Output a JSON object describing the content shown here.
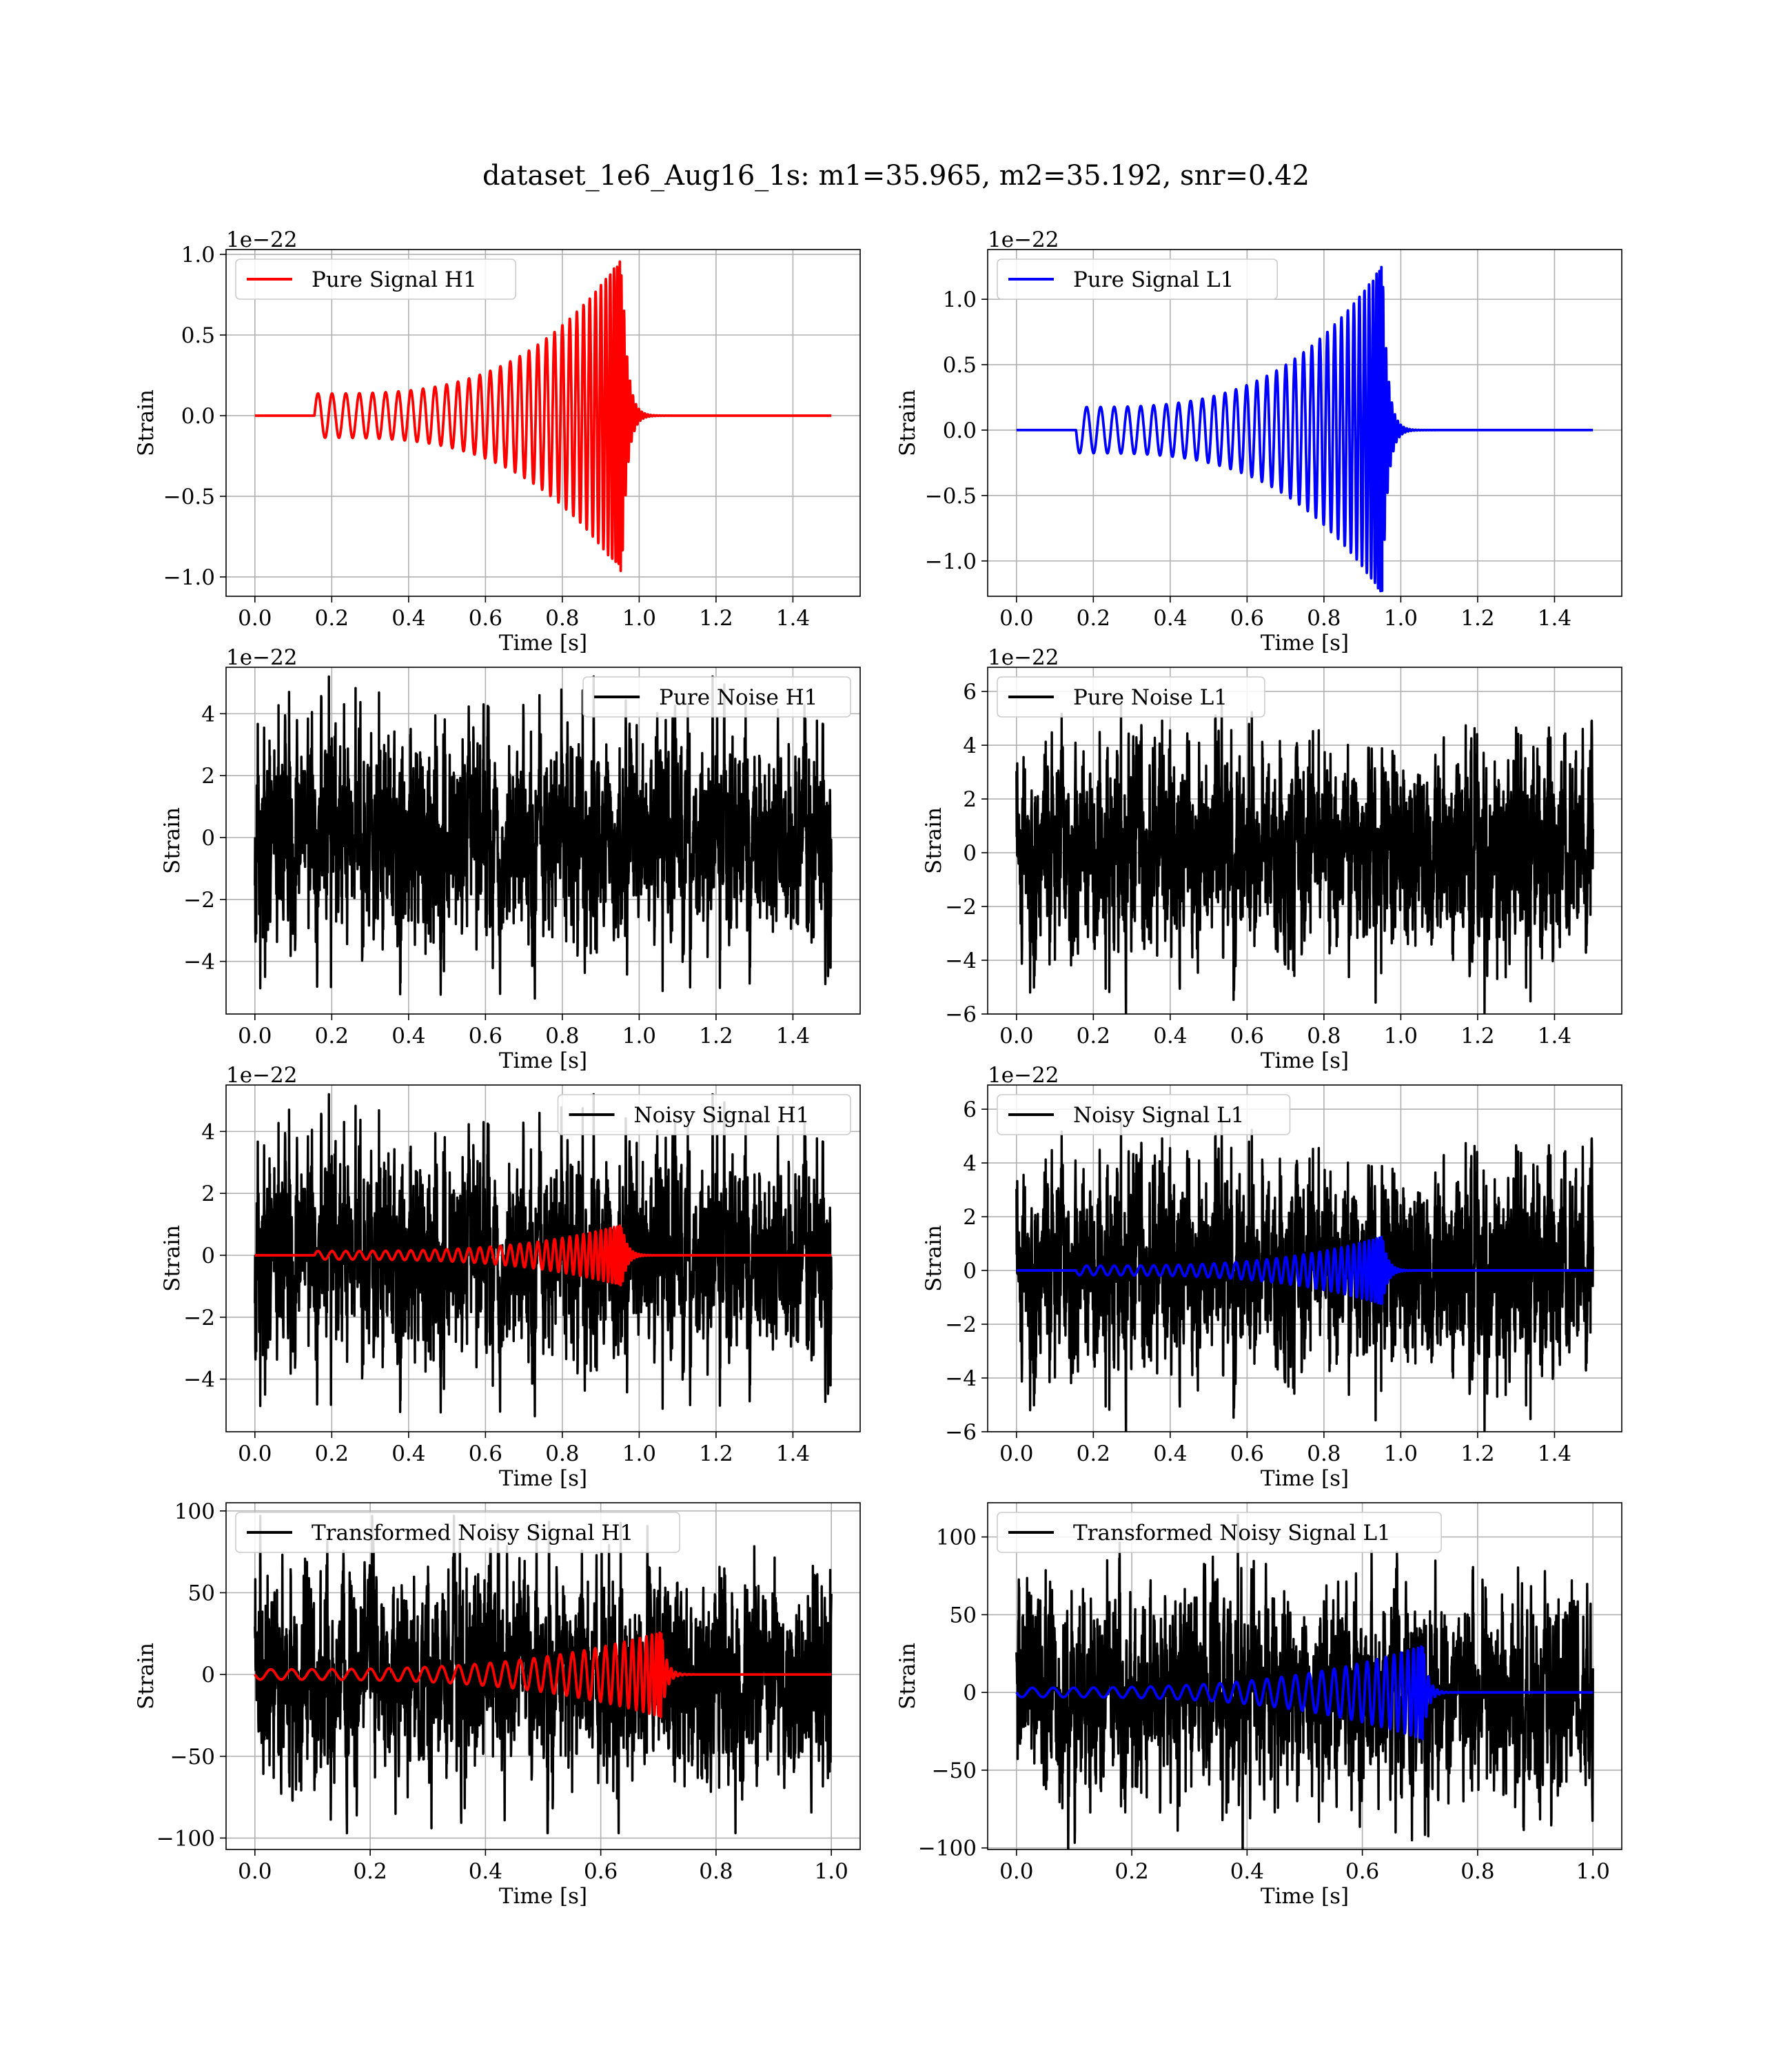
{
  "figure": {
    "suptitle": "dataset_1e6_Aug16_1s: m1=35.965, m2=35.192, snr=0.42",
    "colors": {
      "h1": "#ff0000",
      "l1": "#0000ff",
      "noise": "#000000",
      "grid": "#b0b0b0"
    }
  },
  "chart_data": [
    {
      "type": "line",
      "detector": "H1",
      "kind": "signal",
      "xlabel": "Time [s]",
      "ylabel": "Strain",
      "offset_text": "1e−22",
      "xlim": [
        -0.075,
        1.575
      ],
      "ylim": [
        -1.12,
        1.03
      ],
      "xticks": [
        0.0,
        0.2,
        0.4,
        0.6,
        0.8,
        1.0,
        1.2,
        1.4
      ],
      "xtick_labels": [
        "0.0",
        "0.2",
        "0.4",
        "0.6",
        "0.8",
        "1.0",
        "1.2",
        "1.4"
      ],
      "yticks": [
        -1.0,
        -0.5,
        0.0,
        0.5,
        1.0
      ],
      "ytick_labels": [
        "−1.0",
        "−0.5",
        "0.0",
        "0.5",
        "1.0"
      ],
      "grid": true,
      "legend_loc": "upper left",
      "series": [
        {
          "name": "Pure Signal H1",
          "color": "#ff0000",
          "kind": "chirp",
          "t_start": 0.0,
          "t_end": 1.5,
          "chirp_start": 0.155,
          "merger": 0.955,
          "peak": 0.98,
          "sign": 1.0,
          "ringdown": 0.014
        }
      ]
    },
    {
      "type": "line",
      "detector": "L1",
      "kind": "signal",
      "xlabel": "Time [s]",
      "ylabel": "Strain",
      "offset_text": "1e−22",
      "xlim": [
        -0.075,
        1.575
      ],
      "ylim": [
        -1.27,
        1.38
      ],
      "xticks": [
        0.0,
        0.2,
        0.4,
        0.6,
        0.8,
        1.0,
        1.2,
        1.4
      ],
      "xtick_labels": [
        "0.0",
        "0.2",
        "0.4",
        "0.6",
        "0.8",
        "1.0",
        "1.2",
        "1.4"
      ],
      "yticks": [
        -1.0,
        -0.5,
        0.0,
        0.5,
        1.0
      ],
      "ytick_labels": [
        "−1.0",
        "−0.5",
        "0.0",
        "0.5",
        "1.0"
      ],
      "grid": true,
      "legend_loc": "upper left",
      "series": [
        {
          "name": "Pure Signal L1",
          "color": "#0000ff",
          "kind": "chirp",
          "t_start": 0.0,
          "t_end": 1.5,
          "chirp_start": 0.155,
          "merger": 0.952,
          "peak": 1.26,
          "sign": -1.0,
          "ringdown": 0.014
        }
      ]
    },
    {
      "type": "line",
      "detector": "H1",
      "kind": "noise",
      "xlabel": "Time [s]",
      "ylabel": "Strain",
      "offset_text": "1e−22",
      "xlim": [
        -0.075,
        1.575
      ],
      "ylim": [
        -5.7,
        5.5
      ],
      "xticks": [
        0.0,
        0.2,
        0.4,
        0.6,
        0.8,
        1.0,
        1.2,
        1.4
      ],
      "xtick_labels": [
        "0.0",
        "0.2",
        "0.4",
        "0.6",
        "0.8",
        "1.0",
        "1.2",
        "1.4"
      ],
      "yticks": [
        -4,
        -2,
        0,
        2,
        4
      ],
      "ytick_labels": [
        "−4",
        "−2",
        "0",
        "2",
        "4"
      ],
      "grid": true,
      "legend_loc": "upper right",
      "series": [
        {
          "name": "Pure Noise H1",
          "color": "#000000",
          "kind": "noise",
          "t_start": 0.0,
          "t_end": 1.5,
          "seed": 11,
          "sigma": 1.6,
          "cap": 5.2
        }
      ]
    },
    {
      "type": "line",
      "detector": "L1",
      "kind": "noise",
      "xlabel": "Time [s]",
      "ylabel": "Strain",
      "offset_text": "1e−22",
      "xlim": [
        -0.075,
        1.575
      ],
      "ylim": [
        -6.0,
        6.9
      ],
      "xticks": [
        0.0,
        0.2,
        0.4,
        0.6,
        0.8,
        1.0,
        1.2,
        1.4
      ],
      "xtick_labels": [
        "0.0",
        "0.2",
        "0.4",
        "0.6",
        "0.8",
        "1.0",
        "1.2",
        "1.4"
      ],
      "yticks": [
        -6,
        -4,
        -2,
        0,
        2,
        4,
        6
      ],
      "ytick_labels": [
        "−6",
        "−4",
        "−2",
        "0",
        "2",
        "4",
        "6"
      ],
      "grid": true,
      "legend_loc": "upper left",
      "series": [
        {
          "name": "Pure Noise L1",
          "color": "#000000",
          "kind": "noise",
          "t_start": 0.0,
          "t_end": 1.5,
          "seed": 23,
          "sigma": 1.8,
          "cap": 6.4
        }
      ]
    },
    {
      "type": "line",
      "detector": "H1",
      "kind": "noisy",
      "xlabel": "Time [s]",
      "ylabel": "Strain",
      "offset_text": "1e−22",
      "xlim": [
        -0.075,
        1.575
      ],
      "ylim": [
        -5.7,
        5.5
      ],
      "xticks": [
        0.0,
        0.2,
        0.4,
        0.6,
        0.8,
        1.0,
        1.2,
        1.4
      ],
      "xtick_labels": [
        "0.0",
        "0.2",
        "0.4",
        "0.6",
        "0.8",
        "1.0",
        "1.2",
        "1.4"
      ],
      "yticks": [
        -4,
        -2,
        0,
        2,
        4
      ],
      "ytick_labels": [
        "−4",
        "−2",
        "0",
        "2",
        "4"
      ],
      "grid": true,
      "legend_loc": "upper right",
      "series": [
        {
          "name": "Noisy Signal H1",
          "color": "#000000",
          "kind": "noise",
          "t_start": 0.0,
          "t_end": 1.5,
          "seed": 11,
          "sigma": 1.6,
          "cap": 5.2
        },
        {
          "name": "",
          "color": "#ff0000",
          "kind": "chirp",
          "t_start": 0.0,
          "t_end": 1.5,
          "chirp_start": 0.155,
          "merger": 0.955,
          "peak": 0.98,
          "sign": 1.0,
          "ringdown": 0.014
        }
      ]
    },
    {
      "type": "line",
      "detector": "L1",
      "kind": "noisy",
      "xlabel": "Time [s]",
      "ylabel": "Strain",
      "offset_text": "1e−22",
      "xlim": [
        -0.075,
        1.575
      ],
      "ylim": [
        -6.0,
        6.9
      ],
      "xticks": [
        0.0,
        0.2,
        0.4,
        0.6,
        0.8,
        1.0,
        1.2,
        1.4
      ],
      "xtick_labels": [
        "0.0",
        "0.2",
        "0.4",
        "0.6",
        "0.8",
        "1.0",
        "1.2",
        "1.4"
      ],
      "yticks": [
        -6,
        -4,
        -2,
        0,
        2,
        4,
        6
      ],
      "ytick_labels": [
        "−6",
        "−4",
        "−2",
        "0",
        "2",
        "4",
        "6"
      ],
      "grid": true,
      "legend_loc": "upper left",
      "series": [
        {
          "name": "Noisy Signal L1",
          "color": "#000000",
          "kind": "noise",
          "t_start": 0.0,
          "t_end": 1.5,
          "seed": 23,
          "sigma": 1.8,
          "cap": 6.4
        },
        {
          "name": "",
          "color": "#0000ff",
          "kind": "chirp",
          "t_start": 0.0,
          "t_end": 1.5,
          "chirp_start": 0.155,
          "merger": 0.952,
          "peak": 1.26,
          "sign": -1.0,
          "ringdown": 0.014
        }
      ]
    },
    {
      "type": "line",
      "detector": "H1",
      "kind": "transformed",
      "xlabel": "Time [s]",
      "ylabel": "Strain",
      "offset_text": "",
      "xlim": [
        -0.05,
        1.05
      ],
      "ylim": [
        -107,
        105
      ],
      "xticks": [
        0.0,
        0.2,
        0.4,
        0.6,
        0.8,
        1.0
      ],
      "xtick_labels": [
        "0.0",
        "0.2",
        "0.4",
        "0.6",
        "0.8",
        "1.0"
      ],
      "yticks": [
        -100,
        -50,
        0,
        50,
        100
      ],
      "ytick_labels": [
        "−100",
        "−50",
        "0",
        "50",
        "100"
      ],
      "grid": true,
      "legend_loc": "upper left",
      "series": [
        {
          "name": "Transformed Noisy Signal H1",
          "color": "#000000",
          "kind": "noise",
          "t_start": 0.0,
          "t_end": 1.0,
          "seed": 37,
          "sigma": 30,
          "cap": 97
        },
        {
          "name": "",
          "color": "#ff0000",
          "kind": "chirp",
          "t_start": 0.0,
          "t_end": 1.0,
          "chirp_start": 0.0,
          "merger": 0.705,
          "peak": 26,
          "sign": -1.0,
          "ringdown": 0.009,
          "start_amp": 0.12
        }
      ]
    },
    {
      "type": "line",
      "detector": "L1",
      "kind": "transformed",
      "xlabel": "Time [s]",
      "ylabel": "Strain",
      "offset_text": "",
      "xlim": [
        -0.05,
        1.05
      ],
      "ylim": [
        -101,
        122
      ],
      "xticks": [
        0.0,
        0.2,
        0.4,
        0.6,
        0.8,
        1.0
      ],
      "xtick_labels": [
        "0.0",
        "0.2",
        "0.4",
        "0.6",
        "0.8",
        "1.0"
      ],
      "yticks": [
        -100,
        -50,
        0,
        50,
        100
      ],
      "ytick_labels": [
        "−100",
        "−50",
        "0",
        "50",
        "100"
      ],
      "grid": true,
      "legend_loc": "upper left",
      "series": [
        {
          "name": "Transformed Noisy Signal L1",
          "color": "#000000",
          "kind": "noise",
          "t_start": 0.0,
          "t_end": 1.0,
          "seed": 53,
          "sigma": 30,
          "cap": 114
        },
        {
          "name": "",
          "color": "#0000ff",
          "kind": "chirp",
          "t_start": 0.0,
          "t_end": 1.0,
          "chirp_start": 0.0,
          "merger": 0.705,
          "peak": 30,
          "sign": -1.0,
          "ringdown": 0.009,
          "start_amp": 0.1
        }
      ]
    }
  ]
}
